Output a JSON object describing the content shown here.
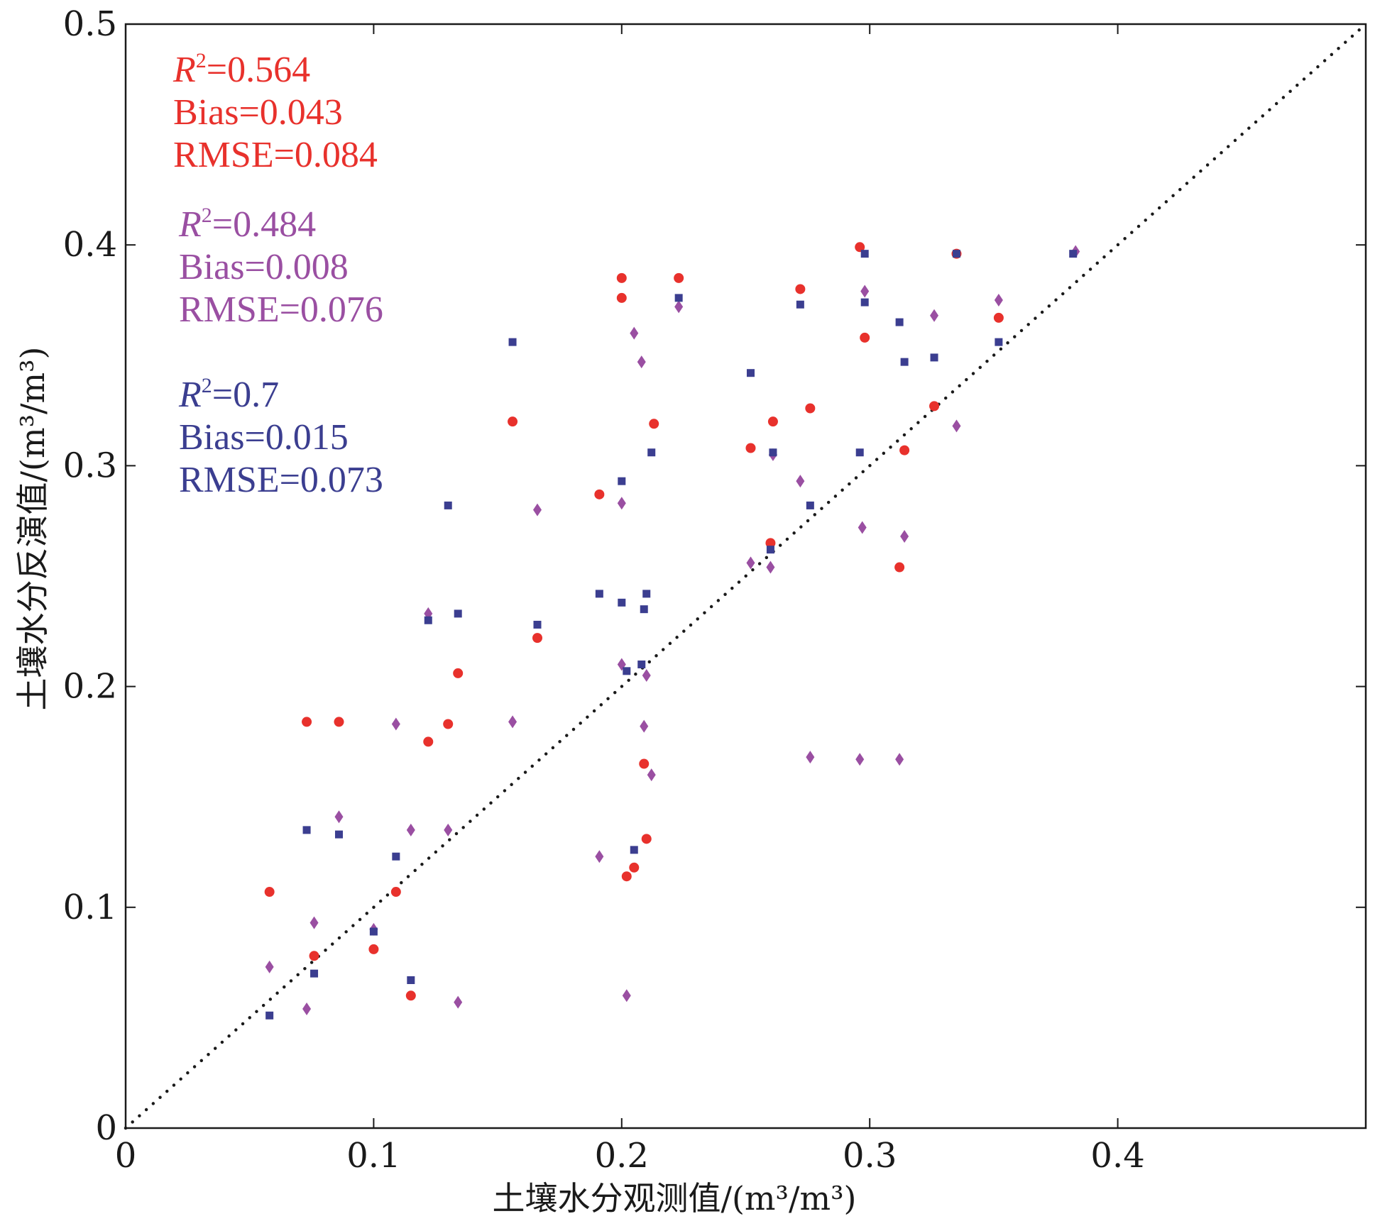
{
  "chart_data": {
    "type": "scatter",
    "title": "",
    "xlabel": "土壤水分观测值/(m³/m³)",
    "ylabel": "土壤水分反演值/(m³/m³)",
    "xlim": [
      0,
      0.5
    ],
    "ylim": [
      0,
      0.5
    ],
    "x_ticks": [
      "0",
      "0.1",
      "0.2",
      "0.3",
      "0.4"
    ],
    "y_ticks": [
      "0",
      "0.1",
      "0.2",
      "0.3",
      "0.4",
      "0.5"
    ],
    "grid": false,
    "reference_line": "1:1 dotted",
    "series": [
      {
        "color": "#e8312c",
        "marker": "circle",
        "stats": {
          "r2_label": "R",
          "r2_value": "=0.564",
          "bias": "Bias=0.043",
          "rmse": "RMSE=0.084"
        },
        "points": [
          [
            0.058,
            0.107
          ],
          [
            0.073,
            0.184
          ],
          [
            0.076,
            0.078
          ],
          [
            0.086,
            0.184
          ],
          [
            0.1,
            0.081
          ],
          [
            0.109,
            0.107
          ],
          [
            0.115,
            0.06
          ],
          [
            0.122,
            0.175
          ],
          [
            0.13,
            0.183
          ],
          [
            0.134,
            0.206
          ],
          [
            0.156,
            0.32
          ],
          [
            0.166,
            0.222
          ],
          [
            0.191,
            0.287
          ],
          [
            0.2,
            0.385
          ],
          [
            0.2,
            0.376
          ],
          [
            0.202,
            0.114
          ],
          [
            0.205,
            0.118
          ],
          [
            0.209,
            0.165
          ],
          [
            0.21,
            0.131
          ],
          [
            0.213,
            0.319
          ],
          [
            0.223,
            0.385
          ],
          [
            0.252,
            0.308
          ],
          [
            0.26,
            0.265
          ],
          [
            0.261,
            0.32
          ],
          [
            0.272,
            0.38
          ],
          [
            0.276,
            0.326
          ],
          [
            0.296,
            0.399
          ],
          [
            0.298,
            0.358
          ],
          [
            0.312,
            0.254
          ],
          [
            0.314,
            0.307
          ],
          [
            0.326,
            0.327
          ],
          [
            0.335,
            0.396
          ],
          [
            0.352,
            0.367
          ]
        ]
      },
      {
        "color": "#9a4fa2",
        "marker": "diamond",
        "stats": {
          "r2_label": "R",
          "r2_value": "=0.484",
          "bias": "Bias=0.008",
          "rmse": "RMSE=0.076"
        },
        "points": [
          [
            0.058,
            0.073
          ],
          [
            0.073,
            0.054
          ],
          [
            0.076,
            0.093
          ],
          [
            0.086,
            0.141
          ],
          [
            0.1,
            0.09
          ],
          [
            0.109,
            0.183
          ],
          [
            0.115,
            0.135
          ],
          [
            0.122,
            0.233
          ],
          [
            0.13,
            0.135
          ],
          [
            0.134,
            0.057
          ],
          [
            0.156,
            0.184
          ],
          [
            0.166,
            0.28
          ],
          [
            0.191,
            0.123
          ],
          [
            0.2,
            0.283
          ],
          [
            0.2,
            0.21
          ],
          [
            0.202,
            0.06
          ],
          [
            0.205,
            0.36
          ],
          [
            0.208,
            0.347
          ],
          [
            0.209,
            0.182
          ],
          [
            0.21,
            0.205
          ],
          [
            0.212,
            0.16
          ],
          [
            0.223,
            0.372
          ],
          [
            0.252,
            0.256
          ],
          [
            0.26,
            0.254
          ],
          [
            0.261,
            0.305
          ],
          [
            0.272,
            0.293
          ],
          [
            0.276,
            0.168
          ],
          [
            0.296,
            0.167
          ],
          [
            0.297,
            0.272
          ],
          [
            0.298,
            0.379
          ],
          [
            0.312,
            0.167
          ],
          [
            0.314,
            0.268
          ],
          [
            0.326,
            0.368
          ],
          [
            0.335,
            0.318
          ],
          [
            0.352,
            0.375
          ],
          [
            0.383,
            0.397
          ]
        ]
      },
      {
        "color": "#3b3e90",
        "marker": "square",
        "stats": {
          "r2_label": "R",
          "r2_value": "=0.7",
          "bias": "Bias=0.015",
          "rmse": "RMSE=0.073"
        },
        "points": [
          [
            0.058,
            0.051
          ],
          [
            0.073,
            0.135
          ],
          [
            0.076,
            0.07
          ],
          [
            0.086,
            0.133
          ],
          [
            0.1,
            0.089
          ],
          [
            0.109,
            0.123
          ],
          [
            0.115,
            0.067
          ],
          [
            0.122,
            0.23
          ],
          [
            0.13,
            0.282
          ],
          [
            0.134,
            0.233
          ],
          [
            0.156,
            0.356
          ],
          [
            0.166,
            0.228
          ],
          [
            0.191,
            0.242
          ],
          [
            0.2,
            0.293
          ],
          [
            0.2,
            0.238
          ],
          [
            0.202,
            0.207
          ],
          [
            0.205,
            0.126
          ],
          [
            0.208,
            0.21
          ],
          [
            0.209,
            0.235
          ],
          [
            0.21,
            0.242
          ],
          [
            0.212,
            0.306
          ],
          [
            0.223,
            0.376
          ],
          [
            0.252,
            0.342
          ],
          [
            0.26,
            0.262
          ],
          [
            0.261,
            0.306
          ],
          [
            0.272,
            0.373
          ],
          [
            0.276,
            0.282
          ],
          [
            0.296,
            0.306
          ],
          [
            0.298,
            0.374
          ],
          [
            0.298,
            0.396
          ],
          [
            0.312,
            0.365
          ],
          [
            0.314,
            0.347
          ],
          [
            0.326,
            0.349
          ],
          [
            0.335,
            0.396
          ],
          [
            0.352,
            0.356
          ],
          [
            0.382,
            0.396
          ]
        ]
      }
    ]
  }
}
